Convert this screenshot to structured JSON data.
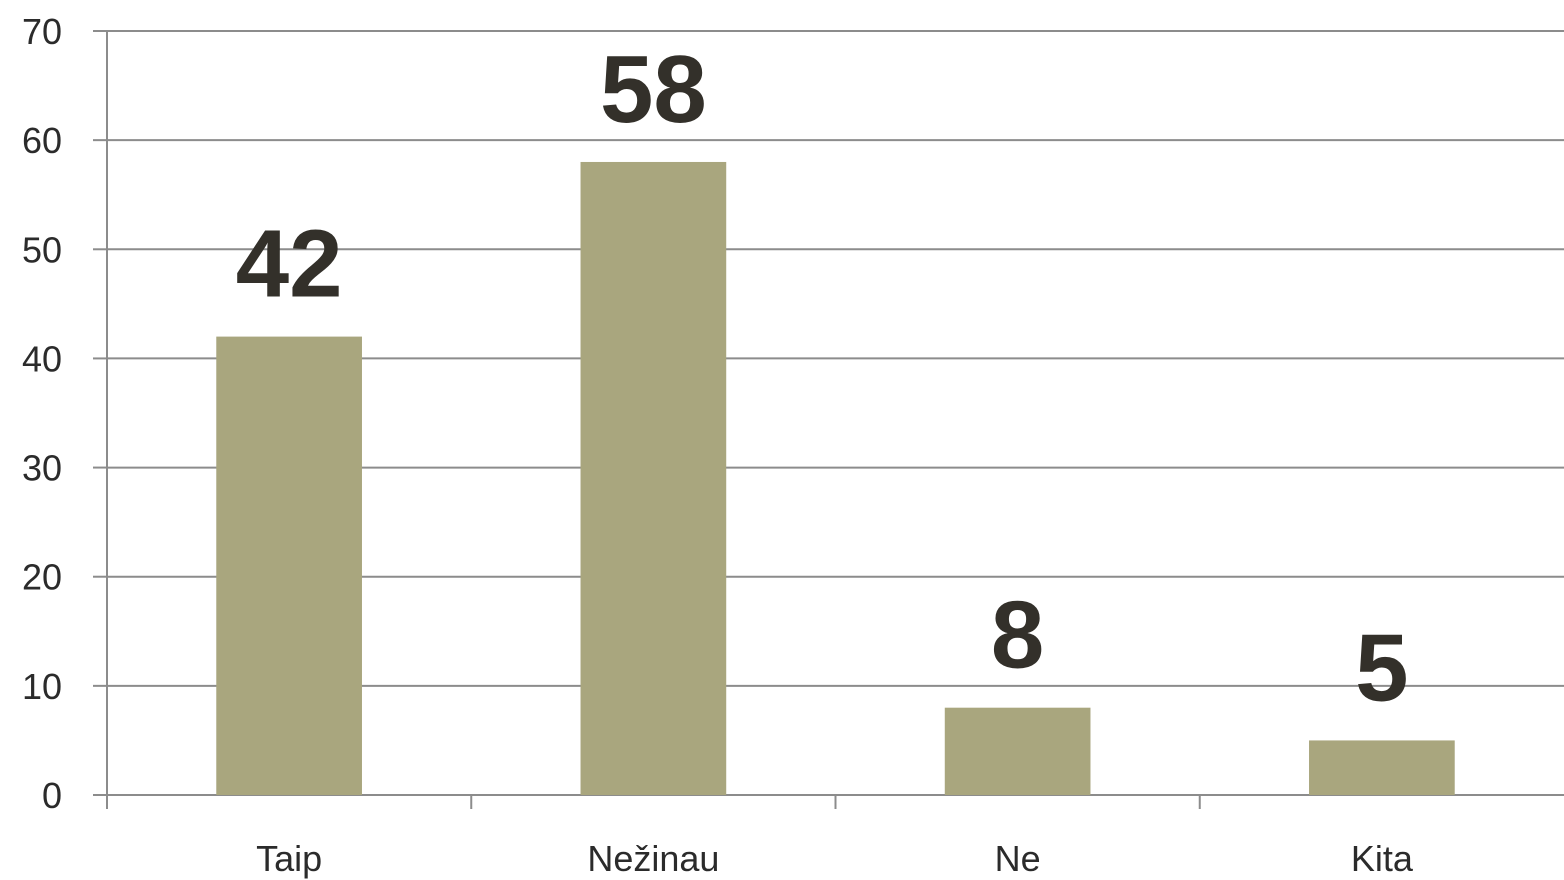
{
  "chart_data": {
    "type": "bar",
    "categories": [
      "Taip",
      "Nežinau",
      "Ne",
      "Kita"
    ],
    "values": [
      42,
      58,
      8,
      5
    ],
    "color": "#a9a67e",
    "ylim": [
      0,
      70
    ],
    "yticks": [
      0,
      10,
      20,
      30,
      40,
      50,
      60,
      70
    ],
    "grid": true
  }
}
